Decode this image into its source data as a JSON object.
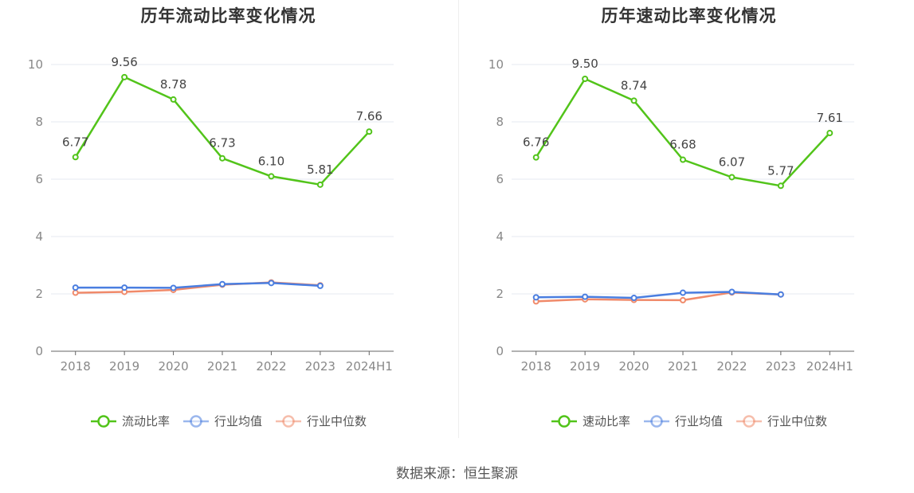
{
  "source": "数据来源：恒生聚源",
  "chart_data": [
    {
      "type": "line",
      "title": "历年流动比率变化情况",
      "categories": [
        "2018",
        "2019",
        "2020",
        "2021",
        "2022",
        "2023",
        "2024H1"
      ],
      "ylim": [
        0,
        10
      ],
      "yticks": [
        "0",
        "2",
        "4",
        "6",
        "8",
        "10"
      ],
      "grid": true,
      "legend_position": "bottom",
      "series": [
        {
          "name": "流动比率",
          "color": "#52c41a",
          "values": [
            6.77,
            9.56,
            8.78,
            6.73,
            6.1,
            5.81,
            7.66
          ],
          "labels": [
            "6.77",
            "9.56",
            "8.78",
            "6.73",
            "6.10",
            "5.81",
            "7.66"
          ]
        },
        {
          "name": "行业均值",
          "color": "#4a7ee0",
          "values": [
            2.22,
            2.22,
            2.21,
            2.34,
            2.38,
            2.28,
            null
          ]
        },
        {
          "name": "行业中位数",
          "color": "#f08a6a",
          "values": [
            2.04,
            2.07,
            2.14,
            2.32,
            2.4,
            2.3,
            null
          ]
        }
      ]
    },
    {
      "type": "line",
      "title": "历年速动比率变化情况",
      "categories": [
        "2018",
        "2019",
        "2020",
        "2021",
        "2022",
        "2023",
        "2024H1"
      ],
      "ylim": [
        0,
        10
      ],
      "yticks": [
        "0",
        "2",
        "4",
        "6",
        "8",
        "10"
      ],
      "grid": true,
      "legend_position": "bottom",
      "series": [
        {
          "name": "速动比率",
          "color": "#52c41a",
          "values": [
            6.76,
            9.5,
            8.74,
            6.68,
            6.07,
            5.77,
            7.61
          ],
          "labels": [
            "6.76",
            "9.50",
            "8.74",
            "6.68",
            "6.07",
            "5.77",
            "7.61"
          ]
        },
        {
          "name": "行业均值",
          "color": "#4a7ee0",
          "values": [
            1.88,
            1.9,
            1.86,
            2.04,
            2.07,
            1.98,
            null
          ]
        },
        {
          "name": "行业中位数",
          "color": "#f08a6a",
          "values": [
            1.74,
            1.81,
            1.79,
            1.78,
            2.05,
            1.98,
            null
          ]
        }
      ]
    }
  ]
}
